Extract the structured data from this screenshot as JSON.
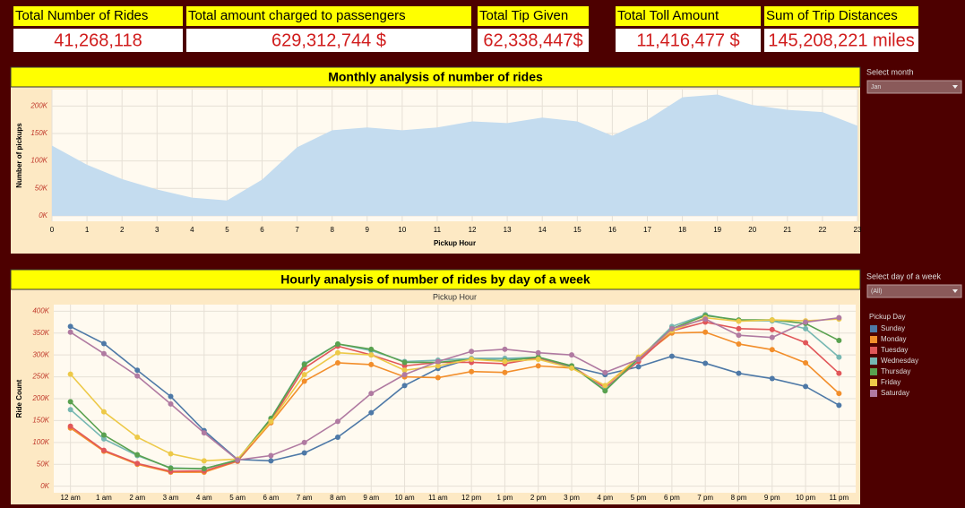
{
  "kpis": [
    {
      "label": "Total Number of Rides",
      "value": "41,268,118"
    },
    {
      "label": "Total amount charged to passengers",
      "value": "629,312,744 $"
    },
    {
      "label": "Total Tip Given",
      "value": "62,338,447$"
    },
    {
      "label": "Total Toll Amount",
      "value": "11,416,477 $"
    },
    {
      "label": "Sum of Trip Distances",
      "value": "145,208,221 miles"
    }
  ],
  "filters": [
    {
      "label": "Select month",
      "value": "Jan"
    },
    {
      "label": "Select day of a week",
      "value": "(All)"
    }
  ],
  "chart_data": [
    {
      "type": "area",
      "title": "Monthly analysis of number of rides",
      "x_label": "Pickup Hour",
      "y_label": "Number of pickups",
      "x": [
        0,
        1,
        2,
        3,
        4,
        5,
        6,
        7,
        8,
        9,
        10,
        11,
        12,
        13,
        14,
        15,
        16,
        17,
        18,
        19,
        20,
        21,
        22,
        23
      ],
      "values": [
        128000,
        93000,
        67000,
        48000,
        33000,
        28000,
        66000,
        125000,
        156000,
        161000,
        156000,
        161000,
        172000,
        169000,
        179000,
        172000,
        146000,
        175000,
        216000,
        221000,
        202000,
        193000,
        189000,
        164000
      ],
      "color": "#c4dcef",
      "xlim": [
        0,
        23
      ],
      "xticks": [
        0,
        1,
        2,
        3,
        4,
        5,
        6,
        7,
        8,
        9,
        10,
        11,
        12,
        13,
        14,
        15,
        16,
        17,
        18,
        19,
        20,
        21,
        22,
        23
      ],
      "ylim": [
        -10000,
        230000
      ],
      "yticks": [
        {
          "value": 0,
          "label": "0K"
        },
        {
          "value": 50000,
          "label": "50K"
        },
        {
          "value": 100000,
          "label": "100K"
        },
        {
          "value": 150000,
          "label": "150K"
        },
        {
          "value": 200000,
          "label": "200K"
        }
      ],
      "grid": true
    },
    {
      "type": "line",
      "title": "Hourly analysis of number of rides by day of a week",
      "subtitle": "Pickup Hour",
      "y_label": "Ride Count",
      "legend_title": "Pickup Day",
      "categories": [
        "12 am",
        "1 am",
        "2 am",
        "3 am",
        "4 am",
        "5 am",
        "6 am",
        "7 am",
        "8 am",
        "9 am",
        "10 am",
        "11 am",
        "12 pm",
        "1 pm",
        "2 pm",
        "3 pm",
        "4 pm",
        "5 pm",
        "6 pm",
        "7 pm",
        "8 pm",
        "9 pm",
        "10 pm",
        "11 pm"
      ],
      "series": [
        {
          "name": "Sunday",
          "color": "#4e79a7",
          "values": [
            365000,
            326000,
            265000,
            205000,
            127000,
            61000,
            58000,
            76000,
            112000,
            168000,
            230000,
            269000,
            292000,
            292000,
            292000,
            273000,
            255000,
            273000,
            297000,
            281000,
            258000,
            246000,
            228000,
            185000
          ]
        },
        {
          "name": "Monday",
          "color": "#f28e2b",
          "values": [
            133000,
            80000,
            50000,
            32000,
            32000,
            57000,
            145000,
            240000,
            282000,
            278000,
            250000,
            248000,
            262000,
            260000,
            275000,
            270000,
            230000,
            290000,
            350000,
            352000,
            325000,
            312000,
            282000,
            212000
          ]
        },
        {
          "name": "Tuesday",
          "color": "#e15759",
          "values": [
            137000,
            82000,
            52000,
            34000,
            35000,
            58000,
            150000,
            270000,
            320000,
            300000,
            275000,
            283000,
            283000,
            280000,
            293000,
            275000,
            225000,
            285000,
            355000,
            375000,
            360000,
            358000,
            328000,
            258000
          ]
        },
        {
          "name": "Wednesday",
          "color": "#76b7b2",
          "values": [
            175000,
            108000,
            70000,
            42000,
            40000,
            60000,
            155000,
            280000,
            325000,
            310000,
            285000,
            288000,
            292000,
            292000,
            295000,
            275000,
            220000,
            290000,
            365000,
            392000,
            378000,
            378000,
            360000,
            295000
          ]
        },
        {
          "name": "Thursday",
          "color": "#59a14f",
          "values": [
            193000,
            117000,
            72000,
            41000,
            40000,
            60000,
            155000,
            278000,
            325000,
            313000,
            283000,
            283000,
            290000,
            287000,
            295000,
            275000,
            218000,
            292000,
            360000,
            390000,
            380000,
            380000,
            372000,
            333000
          ]
        },
        {
          "name": "Friday",
          "color": "#edc948",
          "values": [
            256000,
            170000,
            112000,
            74000,
            58000,
            62000,
            148000,
            255000,
            305000,
            300000,
            265000,
            275000,
            290000,
            285000,
            290000,
            270000,
            230000,
            295000,
            355000,
            385000,
            377000,
            380000,
            378000,
            382000
          ]
        },
        {
          "name": "Saturday",
          "color": "#b07aa1",
          "values": [
            352000,
            303000,
            252000,
            188000,
            122000,
            60000,
            70000,
            100000,
            148000,
            212000,
            255000,
            285000,
            308000,
            313000,
            305000,
            300000,
            260000,
            290000,
            360000,
            382000,
            345000,
            340000,
            375000,
            385000
          ]
        }
      ],
      "ylim": [
        -15000,
        415000
      ],
      "yticks": [
        {
          "value": 0,
          "label": "0K"
        },
        {
          "value": 50000,
          "label": "50K"
        },
        {
          "value": 100000,
          "label": "100K"
        },
        {
          "value": 150000,
          "label": "150K"
        },
        {
          "value": 200000,
          "label": "200K"
        },
        {
          "value": 250000,
          "label": "250K"
        },
        {
          "value": 300000,
          "label": "300K"
        },
        {
          "value": 350000,
          "label": "350K"
        },
        {
          "value": 400000,
          "label": "400K"
        }
      ],
      "grid": true
    }
  ]
}
